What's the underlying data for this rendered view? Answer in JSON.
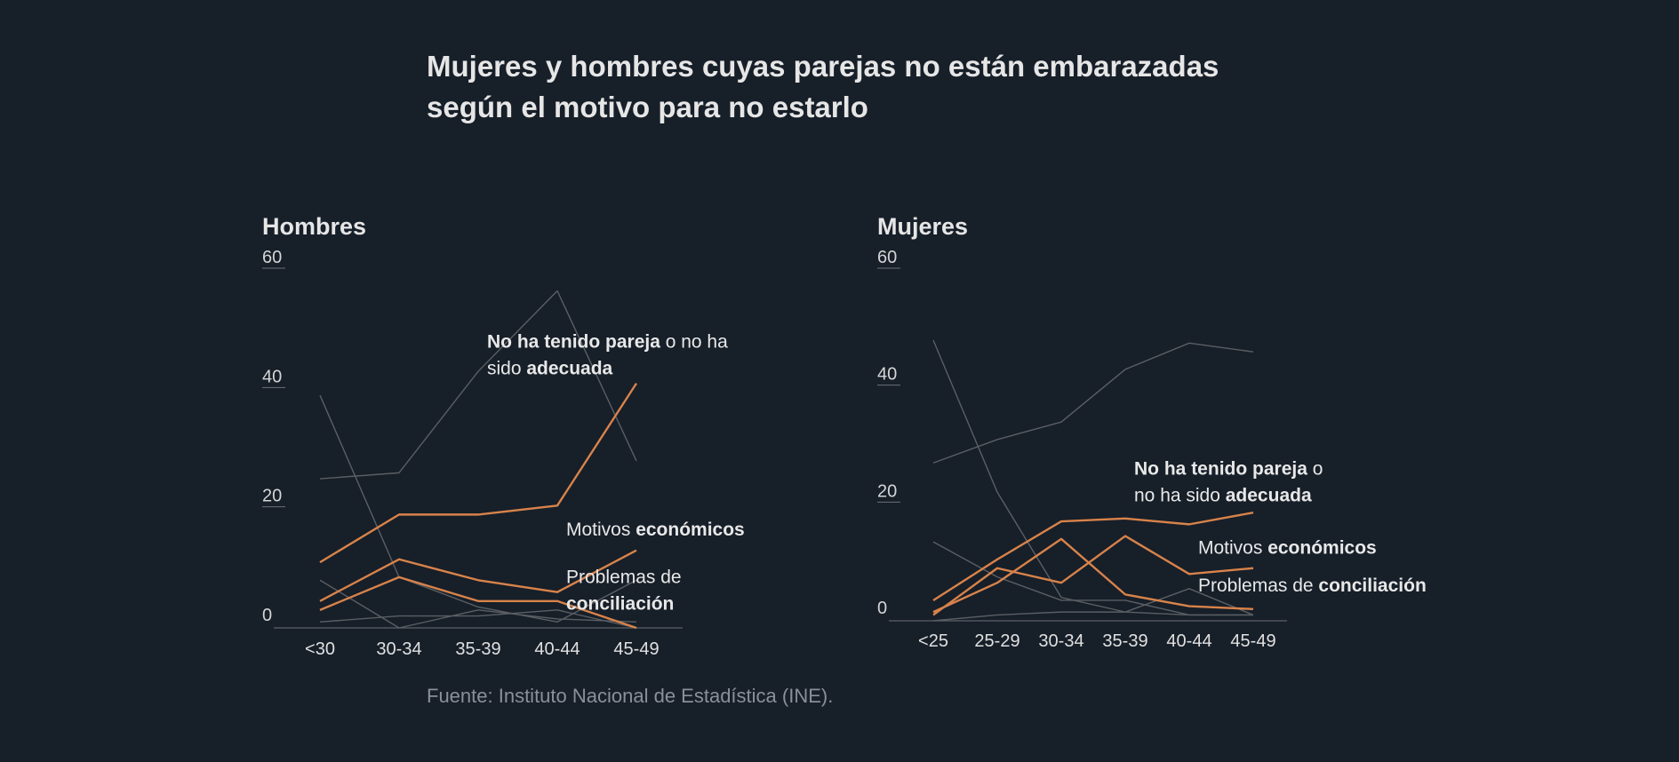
{
  "title_lines": [
    "Mujeres y hombres cuyas parejas no están embarazadas",
    "según el motivo para no estarlo"
  ],
  "source": "Fuente: Instituto Nacional de Estadística (INE).",
  "colors": {
    "background": "#171f29",
    "highlight": "#d8834a",
    "muted": "#5a5f63"
  },
  "chart_data": [
    {
      "type": "line",
      "title": "Hombres",
      "categories": [
        "<30",
        "30-34",
        "35-39",
        "40-44",
        "45-49"
      ],
      "ylim": [
        0,
        60
      ],
      "yticks": [
        0,
        20,
        40,
        60
      ],
      "series": [
        {
          "highlight": true,
          "values": [
            11,
            19,
            19,
            20.5,
            41
          ]
        },
        {
          "highlight": true,
          "values": [
            4.5,
            11.5,
            8,
            6,
            13
          ]
        },
        {
          "highlight": true,
          "values": [
            3,
            8.5,
            4.5,
            4.5,
            0
          ]
        },
        {
          "highlight": false,
          "values": [
            25,
            26,
            43,
            56.5,
            28
          ]
        },
        {
          "highlight": false,
          "values": [
            39,
            8.5,
            3.5,
            1,
            8
          ]
        },
        {
          "highlight": false,
          "values": [
            8,
            0,
            3,
            1.5,
            1
          ]
        },
        {
          "highlight": false,
          "values": [
            1,
            2,
            2,
            3,
            0
          ]
        }
      ],
      "annotations": [
        {
          "lines": [
            [
              {
                "t": "No ha",
                "b": true
              },
              {
                "t": " "
              },
              {
                "t": "tenido pareja",
                "b": true
              },
              {
                "t": " o no ha"
              }
            ],
            [
              {
                "t": "sido "
              },
              {
                "t": "adecuada",
                "b": true
              }
            ]
          ],
          "x": "35-39",
          "y": 47
        },
        {
          "lines": [
            [
              {
                "t": "Motivos "
              },
              {
                "t": "económicos",
                "b": true
              }
            ]
          ],
          "x": "40-44",
          "y": 15.5
        },
        {
          "lines": [
            [
              {
                "t": "Problemas de"
              }
            ],
            [
              {
                "t": "conciliación",
                "b": true
              }
            ]
          ],
          "x": "40-44",
          "y": 7.5
        }
      ]
    },
    {
      "type": "line",
      "title": "Mujeres",
      "categories": [
        "<25",
        "25-29",
        "30-34",
        "35-39",
        "40-44",
        "45-49"
      ],
      "ylim": [
        0,
        60
      ],
      "yticks": [
        0,
        20,
        40,
        60
      ],
      "series": [
        {
          "highlight": true,
          "values": [
            3.5,
            10.5,
            17,
            17.5,
            16.5,
            18.5
          ]
        },
        {
          "highlight": true,
          "values": [
            1.5,
            6.5,
            14,
            4.5,
            2.5,
            2
          ]
        },
        {
          "highlight": true,
          "values": [
            1,
            9,
            6.5,
            14.5,
            8,
            9
          ]
        },
        {
          "highlight": false,
          "values": [
            27,
            31,
            34,
            43,
            47.5,
            46
          ]
        },
        {
          "highlight": false,
          "values": [
            48,
            22,
            4,
            1.5,
            1,
            1
          ]
        },
        {
          "highlight": false,
          "values": [
            13.5,
            7.5,
            3.5,
            3.5,
            1,
            1
          ]
        },
        {
          "highlight": false,
          "values": [
            0,
            1,
            1.5,
            1.5,
            5.5,
            1
          ]
        }
      ],
      "annotations": [
        {
          "lines": [
            [
              {
                "t": "No ha",
                "b": true
              },
              {
                "t": " "
              },
              {
                "t": "tenido pareja",
                "b": true
              },
              {
                "t": " o"
              }
            ],
            [
              {
                "t": "no ha sido "
              },
              {
                "t": "adecuada",
                "b": true
              }
            ]
          ],
          "x": "35-39",
          "y": 25
        },
        {
          "lines": [
            [
              {
                "t": "Motivos "
              },
              {
                "t": "económicos",
                "b": true
              }
            ]
          ],
          "x": "40-44",
          "y": 11.5
        },
        {
          "lines": [
            [
              {
                "t": "Problemas de "
              },
              {
                "t": "conciliación",
                "b": true
              }
            ]
          ],
          "x": "40-44",
          "y": 5
        }
      ]
    }
  ]
}
